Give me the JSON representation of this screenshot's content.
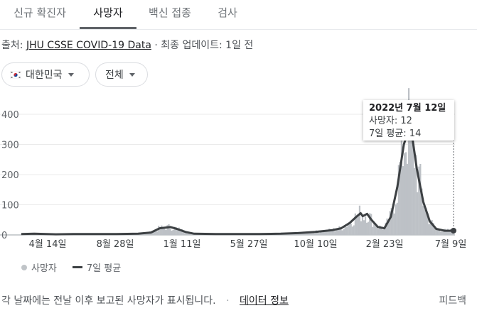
{
  "tabs": [
    {
      "label": "신규 확진자",
      "active": false
    },
    {
      "label": "사망자",
      "active": true
    },
    {
      "label": "백신 접종",
      "active": false
    },
    {
      "label": "검사",
      "active": false
    }
  ],
  "source": {
    "prefix": "출처:",
    "link": "JHU CSSE COVID-19 Data",
    "sep": "·",
    "updated": "최종 업데이트: 1일 전"
  },
  "filters": {
    "country": "대한민국",
    "period": "전체"
  },
  "tooltip": {
    "date": "2022년 7월 12일",
    "deaths": "사망자: 12",
    "avg": "7일 평균: 14"
  },
  "legend": {
    "bars": "사망자",
    "line": "7일 평균"
  },
  "footer": {
    "note": "각 날짜에는 전날 이후 보고된 사망자가 표시됩니다.",
    "sep": "·",
    "info_link": "데이터 정보",
    "feedback": "피드백"
  },
  "colors": {
    "bars": "#bdc1c6",
    "avg_line": "#3c4043",
    "active_tab_underline": "#5f6368"
  },
  "chart_data": {
    "type": "bar",
    "ylim": [
      0,
      400
    ],
    "y_ticks": [
      0,
      100,
      200,
      300,
      400
    ],
    "x_tick_labels": [
      "4월 14일",
      "8월 28일",
      "1월 11일",
      "5월 27일",
      "10월 10일",
      "2월 23일",
      "7월 9일"
    ],
    "series": [
      {
        "name": "사망자",
        "kind": "daily_bars"
      },
      {
        "name": "7일 평균",
        "kind": "line"
      }
    ],
    "avg_points": [
      [
        0,
        3
      ],
      [
        0.03,
        4
      ],
      [
        0.08,
        2
      ],
      [
        0.12,
        3
      ],
      [
        0.18,
        3
      ],
      [
        0.22,
        3
      ],
      [
        0.27,
        4
      ],
      [
        0.3,
        8
      ],
      [
        0.32,
        22
      ],
      [
        0.345,
        26
      ],
      [
        0.36,
        20
      ],
      [
        0.38,
        10
      ],
      [
        0.4,
        4
      ],
      [
        0.45,
        3
      ],
      [
        0.5,
        3
      ],
      [
        0.55,
        3
      ],
      [
        0.6,
        4
      ],
      [
        0.64,
        6
      ],
      [
        0.68,
        10
      ],
      [
        0.72,
        16
      ],
      [
        0.74,
        22
      ],
      [
        0.76,
        40
      ],
      [
        0.775,
        60
      ],
      [
        0.785,
        72
      ],
      [
        0.79,
        62
      ],
      [
        0.8,
        70
      ],
      [
        0.81,
        50
      ],
      [
        0.825,
        26
      ],
      [
        0.84,
        22
      ],
      [
        0.855,
        60
      ],
      [
        0.87,
        160
      ],
      [
        0.885,
        300
      ],
      [
        0.895,
        345
      ],
      [
        0.905,
        320
      ],
      [
        0.915,
        220
      ],
      [
        0.93,
        110
      ],
      [
        0.945,
        45
      ],
      [
        0.96,
        20
      ],
      [
        0.98,
        14
      ],
      [
        1.0,
        14
      ]
    ],
    "highlight": {
      "label": "2022년 7월 12일",
      "deaths": 12,
      "avg": 14
    }
  }
}
